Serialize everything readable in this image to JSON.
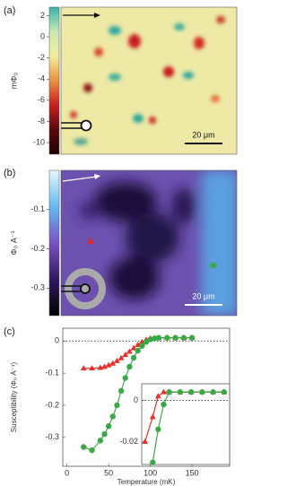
{
  "chart_data": [
    {
      "type": "colormap-image",
      "panel_label": "(a)",
      "colorbar_label": "mΦ₀",
      "ylim": [
        -11.1,
        2.8
      ],
      "yticks": [
        2,
        0,
        -2,
        -4,
        -6,
        -8,
        -10
      ],
      "colormap": [
        "#38b3aa",
        "#c9e8b2",
        "#f4ef9c",
        "#e89040",
        "#c42020",
        "#5a0a0a",
        "#200000"
      ],
      "scale_bar": "20 μm"
    },
    {
      "type": "colormap-image",
      "panel_label": "(b)",
      "colorbar_label": "Φ₀ A⁻¹",
      "ylim": [
        -0.37,
        0
      ],
      "yticks": [
        -0.1,
        -0.2,
        -0.3
      ],
      "colormap": [
        "#e6f6ff",
        "#62baf0",
        "#7a52c0",
        "#301860",
        "#000000"
      ],
      "scale_bar": "20 μm"
    },
    {
      "type": "line",
      "panel_label": "(c)",
      "x_label": "Temperature (mK)",
      "y_label": "Susceptibility (Φ₀ A⁻¹)",
      "xlim": [
        -5,
        195
      ],
      "ylim": [
        -0.39,
        0.04
      ],
      "xticks": [
        0,
        50,
        100,
        150
      ],
      "yticks": [
        0,
        -0.1,
        -0.2,
        -0.3
      ],
      "x": [
        20,
        30,
        40,
        45,
        50,
        55,
        60,
        65,
        70,
        75,
        80,
        85,
        90,
        95,
        100,
        105,
        110,
        120,
        130,
        140,
        150
      ],
      "series": [
        {
          "color": "#e8302a",
          "marker": "triangle",
          "values": [
            -0.085,
            -0.085,
            -0.083,
            -0.08,
            -0.075,
            -0.07,
            -0.062,
            -0.053,
            -0.043,
            -0.033,
            -0.022,
            -0.012,
            -0.003,
            0.004,
            0.008,
            0.01,
            0.01,
            0.01,
            0.01,
            0.01,
            0.01
          ]
        },
        {
          "color": "#3aaa48",
          "marker": "circle",
          "values": [
            -0.33,
            -0.34,
            -0.31,
            -0.29,
            -0.265,
            -0.235,
            -0.2,
            -0.155,
            -0.115,
            -0.08,
            -0.052,
            -0.03,
            -0.015,
            -0.003,
            0.005,
            0.008,
            0.01,
            0.01,
            0.01,
            0.01,
            0.01
          ]
        }
      ]
    },
    {
      "type": "line",
      "inset": true,
      "xlim": [
        75,
        155
      ],
      "ylim": [
        -0.031,
        0.008
      ],
      "yticks": [
        0,
        -0.02
      ],
      "x": [
        78,
        85,
        90,
        95,
        100,
        110,
        120,
        130,
        140,
        150
      ],
      "series": [
        {
          "color": "#e8302a",
          "marker": "triangle",
          "values": [
            -0.02,
            -0.008,
            0.002,
            0.004,
            0.004,
            0.004,
            0.004,
            0.004,
            0.004,
            0.004
          ]
        },
        {
          "color": "#3aaa48",
          "marker": "circle",
          "values": [
            null,
            -0.03,
            -0.014,
            -0.002,
            0.004,
            0.004,
            0.004,
            0.004,
            0.004,
            0.004
          ]
        }
      ]
    }
  ]
}
